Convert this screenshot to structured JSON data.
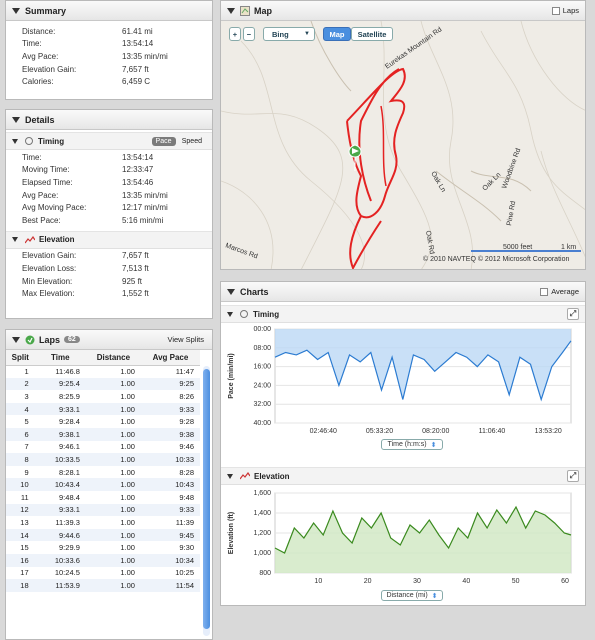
{
  "summary": {
    "title": "Summary",
    "rows": [
      {
        "label": "Distance:",
        "value": "61.41 mi"
      },
      {
        "label": "Time:",
        "value": "13:54:14"
      },
      {
        "label": "Avg Pace:",
        "value": "13:35 min/mi"
      },
      {
        "label": "Elevation Gain:",
        "value": "7,657 ft"
      },
      {
        "label": "Calories:",
        "value": "6,459 C"
      }
    ]
  },
  "details": {
    "title": "Details",
    "timing": {
      "title": "Timing",
      "pace_label": "Pace",
      "speed_label": "Speed",
      "rows": [
        {
          "label": "Time:",
          "value": "13:54:14"
        },
        {
          "label": "Moving Time:",
          "value": "12:33:47"
        },
        {
          "label": "Elapsed Time:",
          "value": "13:54:46"
        },
        {
          "label": "Avg Pace:",
          "value": "13:35 min/mi"
        },
        {
          "label": "Avg Moving Pace:",
          "value": "12:17 min/mi"
        },
        {
          "label": "Best Pace:",
          "value": "5:16 min/mi"
        }
      ]
    },
    "elevation": {
      "title": "Elevation",
      "rows": [
        {
          "label": "Elevation Gain:",
          "value": "7,657 ft"
        },
        {
          "label": "Elevation Loss:",
          "value": "7,513 ft"
        },
        {
          "label": "Min Elevation:",
          "value": "925 ft"
        },
        {
          "label": "Max Elevation:",
          "value": "1,552 ft"
        }
      ]
    }
  },
  "laps": {
    "title": "Laps",
    "count": "62",
    "view_splits": "View Splits",
    "headers": [
      "Split",
      "Time",
      "Distance",
      "Avg Pace"
    ],
    "rows": [
      [
        "1",
        "11:46.8",
        "1.00",
        "11:47"
      ],
      [
        "2",
        "9:25.4",
        "1.00",
        "9:25"
      ],
      [
        "3",
        "8:25.9",
        "1.00",
        "8:26"
      ],
      [
        "4",
        "9:33.1",
        "1.00",
        "9:33"
      ],
      [
        "5",
        "9:28.4",
        "1.00",
        "9:28"
      ],
      [
        "6",
        "9:38.1",
        "1.00",
        "9:38"
      ],
      [
        "7",
        "9:46.1",
        "1.00",
        "9:46"
      ],
      [
        "8",
        "10:33.5",
        "1.00",
        "10:33"
      ],
      [
        "9",
        "8:28.1",
        "1.00",
        "8:28"
      ],
      [
        "10",
        "10:43.4",
        "1.00",
        "10:43"
      ],
      [
        "11",
        "9:48.4",
        "1.00",
        "9:48"
      ],
      [
        "12",
        "9:33.1",
        "1.00",
        "9:33"
      ],
      [
        "13",
        "11:39.3",
        "1.00",
        "11:39"
      ],
      [
        "14",
        "9:44.6",
        "1.00",
        "9:45"
      ],
      [
        "15",
        "9:29.9",
        "1.00",
        "9:30"
      ],
      [
        "16",
        "10:33.6",
        "1.00",
        "10:34"
      ],
      [
        "17",
        "10:24.5",
        "1.00",
        "10:25"
      ],
      [
        "18",
        "11:53.9",
        "1.00",
        "11:54"
      ]
    ]
  },
  "map": {
    "title": "Map",
    "laps_label": "Laps",
    "zoom_in": "+",
    "zoom_out": "−",
    "provider": "Bing",
    "map_btn": "Map",
    "satellite_btn": "Satellite",
    "scale_ft": "5000 feet",
    "scale_km": "1 km",
    "copyright": "© 2010 NAVTEQ  © 2012 Microsoft Corporation",
    "road_labels": [
      "Eurekas Mountain Rd",
      "Marcos Rd",
      "Oak Ln",
      "Oak Ln",
      "Woodbine Rd",
      "Pine Rd",
      "Oak Rd"
    ]
  },
  "charts": {
    "title": "Charts",
    "average_label": "Average",
    "timing": {
      "title": "Timing",
      "selector": "Time (h:m:s)"
    },
    "elevation": {
      "title": "Elevation",
      "selector": "Distance (mi)"
    }
  },
  "chart_data": [
    {
      "type": "line",
      "title": "Timing",
      "ylabel": "Pace (min/mi)",
      "xlabel": "Time (h:m:s)",
      "ylim": [
        0,
        40
      ],
      "y_ticks": [
        "00:00",
        "08:00",
        "16:00",
        "24:00",
        "32:00",
        "40:00"
      ],
      "x_ticks": [
        "02:46:40",
        "05:33:20",
        "08:20:00",
        "11:06:40",
        "13:53:20"
      ],
      "x": [
        0,
        0.5,
        1,
        1.5,
        2,
        2.5,
        3,
        3.5,
        4,
        4.5,
        5,
        5.5,
        6,
        6.5,
        7,
        7.5,
        8,
        8.5,
        9,
        9.5,
        10,
        10.5,
        11,
        11.5,
        12,
        12.5,
        13,
        13.5,
        13.9
      ],
      "values": [
        12,
        10,
        11,
        9,
        13,
        10,
        24,
        11,
        14,
        10,
        26,
        12,
        30,
        11,
        13,
        18,
        14,
        10,
        12,
        16,
        11,
        14,
        28,
        12,
        15,
        30,
        16,
        10,
        5
      ],
      "color": "#2b7bd1"
    },
    {
      "type": "area",
      "title": "Elevation",
      "ylabel": "Elevation (ft)",
      "xlabel": "Distance (mi)",
      "ylim": [
        800,
        1600
      ],
      "y_ticks": [
        "800",
        "1,000",
        "1,200",
        "1,400",
        "1,600"
      ],
      "x_ticks": [
        "10",
        "20",
        "30",
        "40",
        "50",
        "60"
      ],
      "x": [
        0,
        2,
        4,
        6,
        8,
        10,
        12,
        14,
        16,
        18,
        20,
        22,
        24,
        26,
        28,
        30,
        32,
        34,
        36,
        38,
        40,
        42,
        44,
        46,
        48,
        50,
        52,
        54,
        56,
        58,
        60,
        61.4
      ],
      "values": [
        1050,
        1000,
        1250,
        1150,
        1300,
        1180,
        1420,
        1200,
        1100,
        1350,
        1250,
        1400,
        1150,
        1080,
        1280,
        1200,
        1330,
        1180,
        1050,
        1250,
        1150,
        1400,
        1250,
        1430,
        1300,
        1460,
        1250,
        1420,
        1380,
        1300,
        1200,
        1180
      ],
      "color": "#3a8a1e"
    }
  ]
}
